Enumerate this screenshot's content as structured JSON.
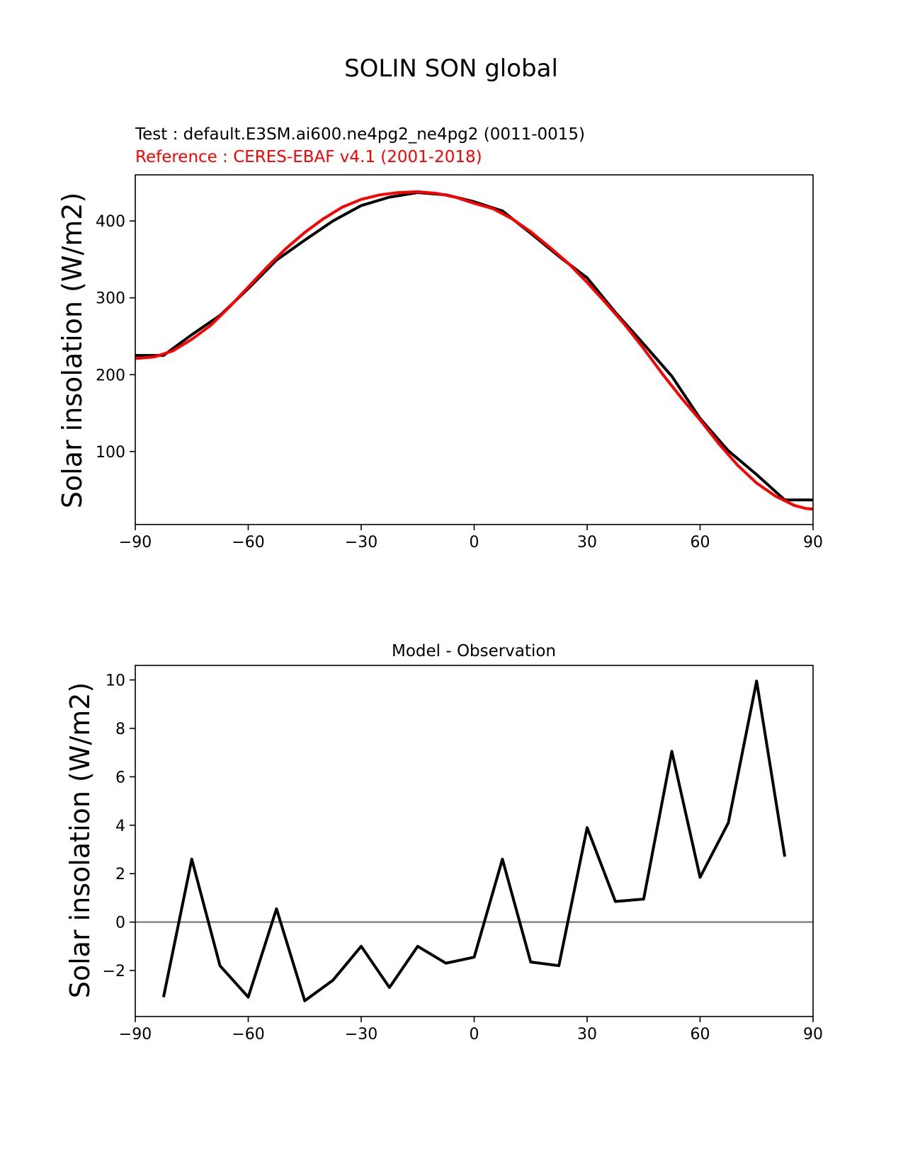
{
  "figure": {
    "suptitle": "SOLIN SON global"
  },
  "chart_data": [
    {
      "type": "line",
      "test_label": "Test : default.E3SM.ai600.ne4pg2_ne4pg2 (0011-0015)",
      "reference_label": "Reference : CERES-EBAF v4.1 (2001-2018)",
      "title": "",
      "xlabel": "",
      "ylabel": "Solar insolation (W/m2)",
      "xlim": [
        -90,
        90
      ],
      "ylim": [
        5,
        460
      ],
      "xticks": [
        -90,
        -60,
        -30,
        0,
        30,
        60,
        90
      ],
      "xtick_labels": [
        "−90",
        "−60",
        "−30",
        "0",
        "30",
        "60",
        "90"
      ],
      "yticks": [
        100,
        200,
        300,
        400
      ],
      "ytick_labels": [
        "100",
        "200",
        "300",
        "400"
      ],
      "grid": false,
      "series": [
        {
          "name": "Test",
          "color": "#000000",
          "x": [
            -90,
            -82.5,
            -75,
            -67.5,
            -60,
            -52.5,
            -45,
            -37.5,
            -30,
            -22.5,
            -15,
            -7.5,
            0,
            7.5,
            15,
            22.5,
            30,
            37.5,
            45,
            52.5,
            60,
            67.5,
            75,
            82.5,
            90
          ],
          "y": [
            225,
            225,
            252,
            277,
            312,
            349,
            375,
            400,
            420,
            431,
            437,
            434,
            425,
            413,
            384,
            354,
            326,
            281,
            240,
            198,
            143,
            101,
            70,
            37,
            37
          ]
        },
        {
          "name": "Reference",
          "color": "#ff0000",
          "x": [
            -90,
            -85,
            -80,
            -75,
            -70,
            -65,
            -60,
            -55,
            -50,
            -45,
            -40,
            -35,
            -30,
            -25,
            -20,
            -15,
            -10,
            -5,
            0,
            5,
            10,
            15,
            20,
            25,
            30,
            35,
            40,
            45,
            50,
            55,
            60,
            65,
            70,
            75,
            80,
            85,
            88,
            90
          ],
          "y": [
            221,
            223,
            231,
            246,
            264,
            288,
            314,
            340,
            364,
            385,
            403,
            418,
            428,
            434,
            437,
            438,
            436,
            431,
            423,
            416,
            403,
            386,
            366,
            345,
            320,
            293,
            265,
            234,
            201,
            170,
            141,
            110,
            82,
            59,
            42,
            30,
            26,
            25
          ]
        }
      ]
    },
    {
      "type": "line",
      "title": "Model - Observation",
      "xlabel": "",
      "ylabel": "Solar insolation (W/m2)",
      "xlim": [
        -90,
        90
      ],
      "ylim": [
        -3.9,
        10.6
      ],
      "xticks": [
        -90,
        -60,
        -30,
        0,
        30,
        60,
        90
      ],
      "xtick_labels": [
        "−90",
        "−60",
        "−30",
        "0",
        "30",
        "60",
        "90"
      ],
      "yticks": [
        -2,
        0,
        2,
        4,
        6,
        8,
        10
      ],
      "ytick_labels": [
        "−2",
        "0",
        "2",
        "4",
        "6",
        "8",
        "10"
      ],
      "grid": false,
      "zero_line_color": "#808080",
      "series": [
        {
          "name": "Difference",
          "color": "#000000",
          "x": [
            -82.5,
            -75,
            -67.5,
            -60,
            -52.5,
            -45,
            -37.5,
            -30,
            -22.5,
            -15,
            -7.5,
            0,
            7.5,
            15,
            22.5,
            30,
            37.5,
            45,
            52.5,
            60,
            67.5,
            75,
            82.5
          ],
          "y": [
            -3.1,
            2.6,
            -1.8,
            -3.1,
            0.55,
            -3.25,
            -2.4,
            -1.0,
            -2.7,
            -1.0,
            -1.7,
            -1.45,
            2.6,
            -1.65,
            -1.8,
            3.9,
            0.85,
            0.95,
            7.05,
            1.85,
            4.1,
            9.95,
            2.7
          ]
        }
      ]
    }
  ]
}
